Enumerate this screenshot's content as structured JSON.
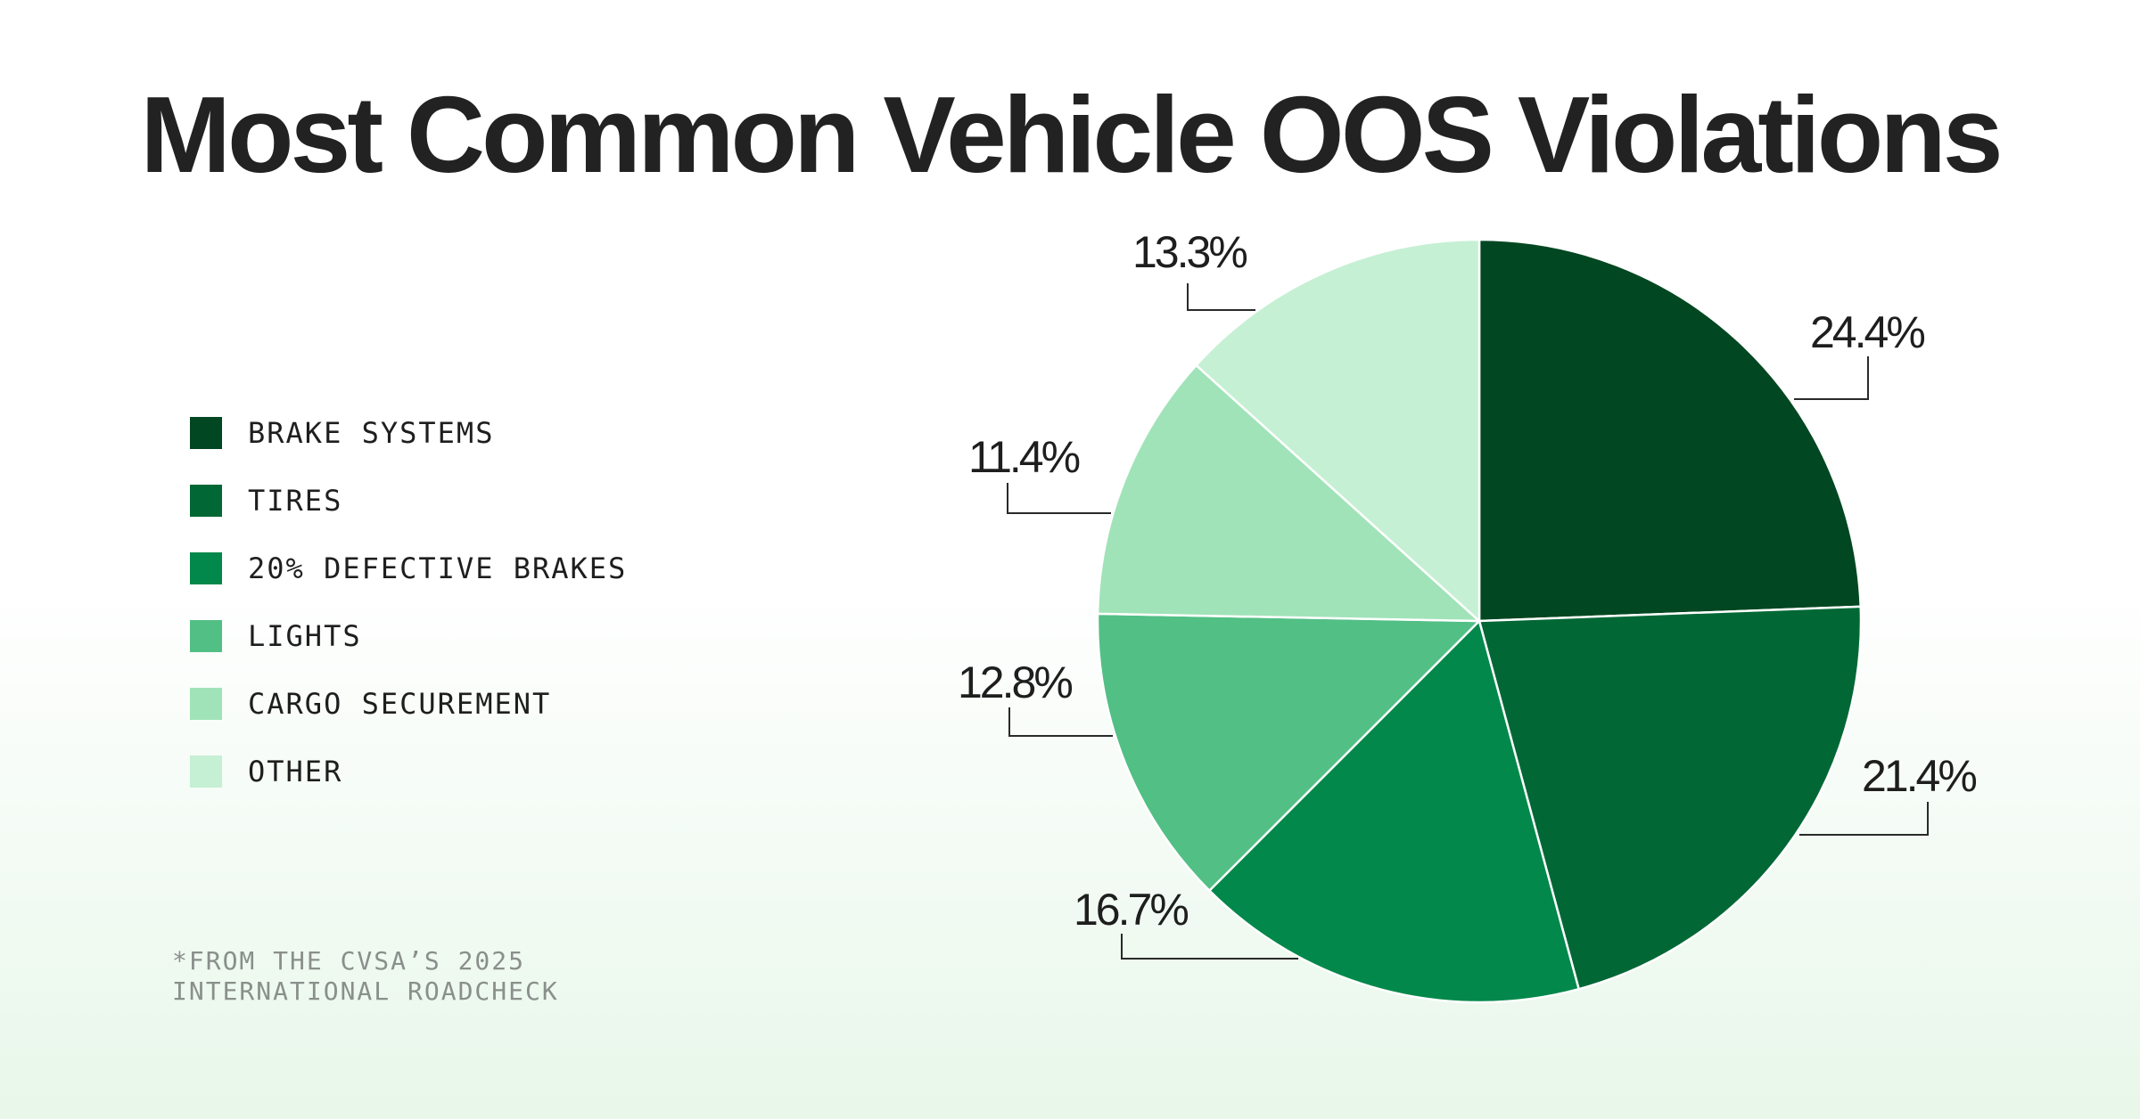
{
  "chart_data": {
    "type": "pie",
    "title": "Most Common Vehicle OOS Violations",
    "legend_position": "left",
    "slices": [
      {
        "label": "BRAKE SYSTEMS",
        "value": 24.4,
        "value_label": "24.4%",
        "color": "#014721"
      },
      {
        "label": "TIRES",
        "value": 21.4,
        "value_label": "21.4%",
        "color": "#016835"
      },
      {
        "label": "20% DEFECTIVE BRAKES",
        "value": 16.7,
        "value_label": "16.7%",
        "color": "#02884a"
      },
      {
        "label": "LIGHTS",
        "value": 12.8,
        "value_label": "12.8%",
        "color": "#52bf85"
      },
      {
        "label": "CARGO SECUREMENT",
        "value": 11.4,
        "value_label": "11.4%",
        "color": "#a0e3b8"
      },
      {
        "label": "OTHER",
        "value": 13.3,
        "value_label": "13.3%",
        "color": "#c5f0d4"
      }
    ],
    "source_note": [
      "*FROM THE CVSA’S 2025",
      "INTERNATIONAL ROADCHECK"
    ]
  }
}
